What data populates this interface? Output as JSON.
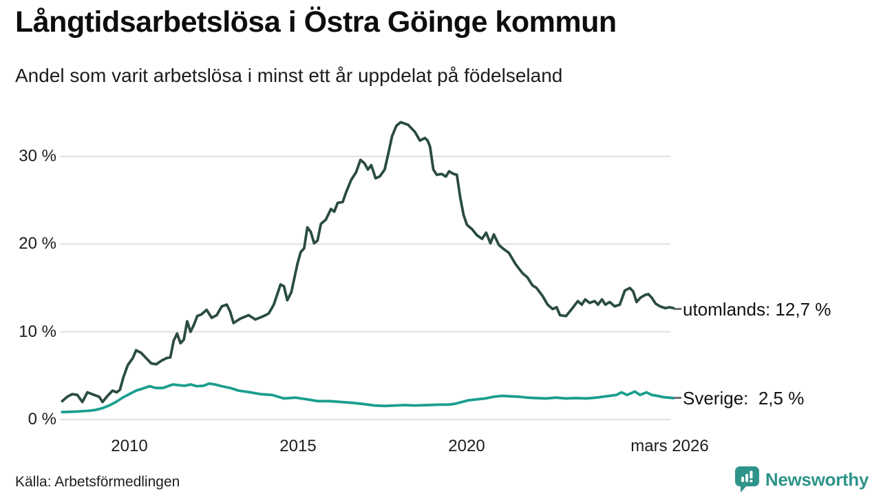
{
  "header": {
    "title": "Långtidsarbetslösa i Östra Göinge kommun",
    "subtitle": "Andel som varit arbetslösa i minst ett år uppdelat på födelseland"
  },
  "chart_data": {
    "type": "line",
    "title": "Långtidsarbetslösa i Östra Göinge kommun",
    "subtitle": "Andel som varit arbetslösa i minst ett år uppdelat på födelseland",
    "grid": "horizontal",
    "legend_position": "right-end-labels",
    "colors": {
      "utomlands": "#2A4C41",
      "sverige": "#1A9E8E",
      "gridline": "#dedede",
      "brand": "#2E948A"
    },
    "x_axis": {
      "range": [
        2008.0,
        2026.2
      ],
      "ticks": [
        {
          "x": 2010,
          "label": "2010"
        },
        {
          "x": 2015,
          "label": "2015"
        },
        {
          "x": 2020,
          "label": "2020"
        },
        {
          "x": 2026.1,
          "label": "mars 2026"
        }
      ]
    },
    "y_axis": {
      "range": [
        0,
        35
      ],
      "unit": "%",
      "ticks": [
        {
          "v": 30,
          "label": "30 %"
        },
        {
          "v": 20,
          "label": "20 %"
        },
        {
          "v": 10,
          "label": "10 %"
        },
        {
          "v": 0,
          "label": "0 %"
        }
      ]
    },
    "series": [
      {
        "name": "utomlands",
        "end_label": "utomlands: 12,7 %",
        "end_value": "12,7 %",
        "color": "#2A4C41",
        "points": [
          [
            2008.0,
            2.1
          ],
          [
            2008.15,
            2.6
          ],
          [
            2008.3,
            2.9
          ],
          [
            2008.45,
            2.8
          ],
          [
            2008.6,
            2.0
          ],
          [
            2008.75,
            3.1
          ],
          [
            2008.95,
            2.8
          ],
          [
            2009.1,
            2.6
          ],
          [
            2009.2,
            2.0
          ],
          [
            2009.35,
            2.7
          ],
          [
            2009.5,
            3.3
          ],
          [
            2009.62,
            3.1
          ],
          [
            2009.72,
            3.4
          ],
          [
            2009.82,
            4.8
          ],
          [
            2009.95,
            6.2
          ],
          [
            2010.1,
            7.0
          ],
          [
            2010.2,
            7.9
          ],
          [
            2010.35,
            7.6
          ],
          [
            2010.5,
            7.0
          ],
          [
            2010.65,
            6.4
          ],
          [
            2010.8,
            6.3
          ],
          [
            2010.95,
            6.7
          ],
          [
            2011.1,
            7.0
          ],
          [
            2011.22,
            7.1
          ],
          [
            2011.32,
            9.0
          ],
          [
            2011.42,
            9.8
          ],
          [
            2011.52,
            8.7
          ],
          [
            2011.62,
            9.1
          ],
          [
            2011.72,
            11.2
          ],
          [
            2011.82,
            10.0
          ],
          [
            2011.92,
            10.8
          ],
          [
            2012.02,
            11.8
          ],
          [
            2012.15,
            12.0
          ],
          [
            2012.3,
            12.5
          ],
          [
            2012.45,
            11.6
          ],
          [
            2012.6,
            11.9
          ],
          [
            2012.75,
            12.9
          ],
          [
            2012.9,
            13.1
          ],
          [
            2013.0,
            12.3
          ],
          [
            2013.1,
            11.0
          ],
          [
            2013.3,
            11.5
          ],
          [
            2013.55,
            11.9
          ],
          [
            2013.75,
            11.4
          ],
          [
            2014.0,
            11.8
          ],
          [
            2014.15,
            12.1
          ],
          [
            2014.3,
            13.1
          ],
          [
            2014.5,
            15.4
          ],
          [
            2014.6,
            15.2
          ],
          [
            2014.7,
            13.6
          ],
          [
            2014.82,
            14.5
          ],
          [
            2015.0,
            17.7
          ],
          [
            2015.1,
            19.1
          ],
          [
            2015.2,
            19.5
          ],
          [
            2015.3,
            21.9
          ],
          [
            2015.4,
            21.4
          ],
          [
            2015.5,
            20.1
          ],
          [
            2015.6,
            20.4
          ],
          [
            2015.7,
            22.3
          ],
          [
            2015.85,
            22.8
          ],
          [
            2016.0,
            24.0
          ],
          [
            2016.1,
            23.7
          ],
          [
            2016.2,
            24.7
          ],
          [
            2016.35,
            24.8
          ],
          [
            2016.45,
            25.9
          ],
          [
            2016.6,
            27.3
          ],
          [
            2016.75,
            28.2
          ],
          [
            2016.88,
            29.6
          ],
          [
            2017.0,
            29.2
          ],
          [
            2017.1,
            28.5
          ],
          [
            2017.2,
            29.0
          ],
          [
            2017.33,
            27.5
          ],
          [
            2017.45,
            27.7
          ],
          [
            2017.6,
            28.5
          ],
          [
            2017.72,
            30.5
          ],
          [
            2017.82,
            32.3
          ],
          [
            2017.95,
            33.5
          ],
          [
            2018.08,
            33.9
          ],
          [
            2018.3,
            33.6
          ],
          [
            2018.5,
            32.8
          ],
          [
            2018.65,
            31.8
          ],
          [
            2018.8,
            32.1
          ],
          [
            2018.88,
            31.8
          ],
          [
            2018.95,
            31.1
          ],
          [
            2019.05,
            28.5
          ],
          [
            2019.15,
            27.9
          ],
          [
            2019.3,
            28.0
          ],
          [
            2019.42,
            27.7
          ],
          [
            2019.52,
            28.3
          ],
          [
            2019.65,
            28.0
          ],
          [
            2019.75,
            27.9
          ],
          [
            2019.85,
            25.3
          ],
          [
            2019.95,
            23.3
          ],
          [
            2020.05,
            22.2
          ],
          [
            2020.2,
            21.7
          ],
          [
            2020.35,
            21.0
          ],
          [
            2020.5,
            20.6
          ],
          [
            2020.62,
            21.3
          ],
          [
            2020.75,
            20.1
          ],
          [
            2020.85,
            21.1
          ],
          [
            2021.0,
            19.9
          ],
          [
            2021.12,
            19.5
          ],
          [
            2021.3,
            19.0
          ],
          [
            2021.5,
            17.7
          ],
          [
            2021.7,
            16.7
          ],
          [
            2021.85,
            16.2
          ],
          [
            2022.0,
            15.3
          ],
          [
            2022.12,
            15.0
          ],
          [
            2022.3,
            14.1
          ],
          [
            2022.45,
            13.1
          ],
          [
            2022.6,
            12.6
          ],
          [
            2022.72,
            12.8
          ],
          [
            2022.82,
            11.9
          ],
          [
            2023.0,
            11.8
          ],
          [
            2023.17,
            12.6
          ],
          [
            2023.35,
            13.5
          ],
          [
            2023.47,
            13.1
          ],
          [
            2023.57,
            13.7
          ],
          [
            2023.7,
            13.3
          ],
          [
            2023.85,
            13.5
          ],
          [
            2023.95,
            13.1
          ],
          [
            2024.07,
            13.7
          ],
          [
            2024.17,
            13.1
          ],
          [
            2024.3,
            13.4
          ],
          [
            2024.45,
            12.9
          ],
          [
            2024.6,
            13.1
          ],
          [
            2024.75,
            14.7
          ],
          [
            2024.9,
            15.0
          ],
          [
            2025.0,
            14.6
          ],
          [
            2025.1,
            13.4
          ],
          [
            2025.22,
            13.9
          ],
          [
            2025.35,
            14.2
          ],
          [
            2025.45,
            14.3
          ],
          [
            2025.55,
            13.9
          ],
          [
            2025.67,
            13.2
          ],
          [
            2025.8,
            12.9
          ],
          [
            2025.95,
            12.7
          ],
          [
            2026.08,
            12.8
          ],
          [
            2026.2,
            12.7
          ]
        ]
      },
      {
        "name": "Sverige",
        "end_label": "Sverige:  2,5 %",
        "end_value": "2,5 %",
        "color": "#1A9E8E",
        "points": [
          [
            2008.0,
            0.85
          ],
          [
            2008.4,
            0.9
          ],
          [
            2008.8,
            1.0
          ],
          [
            2009.0,
            1.1
          ],
          [
            2009.2,
            1.3
          ],
          [
            2009.4,
            1.6
          ],
          [
            2009.6,
            2.0
          ],
          [
            2009.8,
            2.5
          ],
          [
            2010.0,
            2.9
          ],
          [
            2010.2,
            3.3
          ],
          [
            2010.45,
            3.6
          ],
          [
            2010.6,
            3.8
          ],
          [
            2010.78,
            3.6
          ],
          [
            2011.0,
            3.6
          ],
          [
            2011.15,
            3.8
          ],
          [
            2011.3,
            4.0
          ],
          [
            2011.5,
            3.9
          ],
          [
            2011.65,
            3.85
          ],
          [
            2011.82,
            4.0
          ],
          [
            2012.0,
            3.8
          ],
          [
            2012.2,
            3.85
          ],
          [
            2012.38,
            4.1
          ],
          [
            2012.55,
            4.0
          ],
          [
            2012.75,
            3.8
          ],
          [
            2013.0,
            3.6
          ],
          [
            2013.25,
            3.3
          ],
          [
            2013.6,
            3.1
          ],
          [
            2013.9,
            2.9
          ],
          [
            2014.25,
            2.8
          ],
          [
            2014.6,
            2.4
          ],
          [
            2014.95,
            2.5
          ],
          [
            2015.3,
            2.3
          ],
          [
            2015.6,
            2.1
          ],
          [
            2015.95,
            2.1
          ],
          [
            2016.3,
            2.0
          ],
          [
            2016.65,
            1.9
          ],
          [
            2017.0,
            1.75
          ],
          [
            2017.3,
            1.6
          ],
          [
            2017.6,
            1.55
          ],
          [
            2017.9,
            1.6
          ],
          [
            2018.2,
            1.65
          ],
          [
            2018.5,
            1.6
          ],
          [
            2018.9,
            1.65
          ],
          [
            2019.2,
            1.7
          ],
          [
            2019.5,
            1.7
          ],
          [
            2019.7,
            1.8
          ],
          [
            2019.9,
            2.0
          ],
          [
            2020.1,
            2.2
          ],
          [
            2020.35,
            2.3
          ],
          [
            2020.6,
            2.4
          ],
          [
            2020.85,
            2.6
          ],
          [
            2021.1,
            2.7
          ],
          [
            2021.35,
            2.65
          ],
          [
            2021.6,
            2.6
          ],
          [
            2021.85,
            2.5
          ],
          [
            2022.1,
            2.45
          ],
          [
            2022.4,
            2.4
          ],
          [
            2022.7,
            2.5
          ],
          [
            2023.0,
            2.4
          ],
          [
            2023.3,
            2.45
          ],
          [
            2023.6,
            2.4
          ],
          [
            2023.9,
            2.5
          ],
          [
            2024.1,
            2.6
          ],
          [
            2024.3,
            2.7
          ],
          [
            2024.5,
            2.8
          ],
          [
            2024.65,
            3.1
          ],
          [
            2024.82,
            2.8
          ],
          [
            2025.05,
            3.2
          ],
          [
            2025.2,
            2.8
          ],
          [
            2025.4,
            3.1
          ],
          [
            2025.55,
            2.8
          ],
          [
            2025.72,
            2.7
          ],
          [
            2025.9,
            2.55
          ],
          [
            2026.05,
            2.5
          ],
          [
            2026.2,
            2.45
          ]
        ]
      }
    ]
  },
  "footer": {
    "source": "Källa: Arbetsförmedlingen",
    "brand": "Newsworthy"
  }
}
